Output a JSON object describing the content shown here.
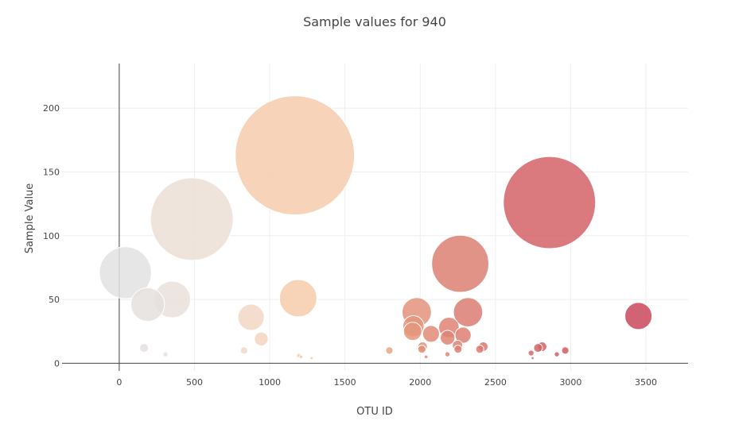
{
  "chart_data": {
    "type": "scatter",
    "title": "Sample values for 940",
    "xlabel": "OTU ID",
    "ylabel": "Sample Value",
    "xlim": [
      -380,
      3780
    ],
    "ylim": [
      -6,
      235
    ],
    "xticks": [
      0,
      500,
      1000,
      1500,
      2000,
      2500,
      3000,
      3500
    ],
    "yticks": [
      0,
      50,
      100,
      150,
      200
    ],
    "grid": true,
    "legend": "none",
    "marker_sizing": "bubble size proportional to sample value",
    "colorscale": [
      "#e2e2e2",
      "#f1ddd0",
      "#f9c39a",
      "#e08a76",
      "#d46569",
      "#c9485c"
    ],
    "points": [
      {
        "x": 41,
        "y": 71
      },
      {
        "x": 189,
        "y": 46
      },
      {
        "x": 352,
        "y": 50
      },
      {
        "x": 482,
        "y": 113
      },
      {
        "x": 165,
        "y": 12
      },
      {
        "x": 307,
        "y": 7
      },
      {
        "x": 830,
        "y": 10
      },
      {
        "x": 876,
        "y": 36
      },
      {
        "x": 944,
        "y": 19
      },
      {
        "x": 1167,
        "y": 163
      },
      {
        "x": 1189,
        "y": 51
      },
      {
        "x": 1193,
        "y": 6
      },
      {
        "x": 1208,
        "y": 5
      },
      {
        "x": 1278,
        "y": 4
      },
      {
        "x": 1795,
        "y": 10
      },
      {
        "x": 1977,
        "y": 40
      },
      {
        "x": 1955,
        "y": 29
      },
      {
        "x": 1950,
        "y": 25
      },
      {
        "x": 2011,
        "y": 11
      },
      {
        "x": 2016,
        "y": 13
      },
      {
        "x": 2072,
        "y": 23
      },
      {
        "x": 2039,
        "y": 5
      },
      {
        "x": 2191,
        "y": 28
      },
      {
        "x": 2182,
        "y": 20
      },
      {
        "x": 2181,
        "y": 7
      },
      {
        "x": 2248,
        "y": 14
      },
      {
        "x": 2251,
        "y": 11
      },
      {
        "x": 2266,
        "y": 78
      },
      {
        "x": 2285,
        "y": 22
      },
      {
        "x": 2318,
        "y": 40
      },
      {
        "x": 2396,
        "y": 11
      },
      {
        "x": 2419,
        "y": 13
      },
      {
        "x": 2737,
        "y": 8
      },
      {
        "x": 2747,
        "y": 4
      },
      {
        "x": 2783,
        "y": 12
      },
      {
        "x": 2810,
        "y": 13
      },
      {
        "x": 2859,
        "y": 126
      },
      {
        "x": 2908,
        "y": 7
      },
      {
        "x": 2964,
        "y": 10
      },
      {
        "x": 3450,
        "y": 37
      }
    ]
  }
}
